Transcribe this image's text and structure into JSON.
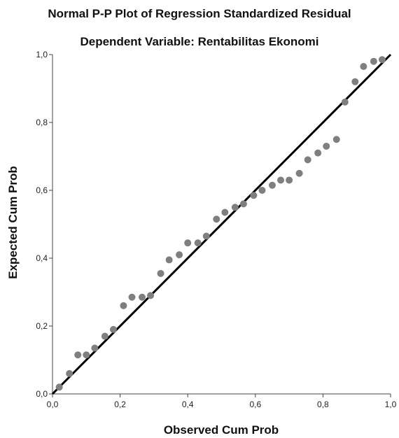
{
  "chart_data": {
    "type": "scatter",
    "title": "Normal P-P Plot of Regression Standardized Residual",
    "subtitle": "Dependent Variable: Rentabilitas Ekonomi",
    "xlabel": "Observed Cum Prob",
    "ylabel": "Expected Cum Prob",
    "xlim": [
      0,
      1
    ],
    "ylim": [
      0,
      1
    ],
    "xticks": [
      "0,0",
      "0,2",
      "0,4",
      "0,6",
      "0,8",
      "1,0"
    ],
    "yticks": [
      "0,0",
      "0,2",
      "0,4",
      "0,6",
      "0,8",
      "1,0"
    ],
    "grid": false,
    "reference_line": {
      "x": [
        0,
        1
      ],
      "y": [
        0,
        1
      ],
      "color": "#000000"
    },
    "point_color": "#7f7f7f",
    "points": [
      [
        0.02,
        0.02
      ],
      [
        0.05,
        0.06
      ],
      [
        0.075,
        0.115
      ],
      [
        0.1,
        0.115
      ],
      [
        0.125,
        0.135
      ],
      [
        0.155,
        0.17
      ],
      [
        0.18,
        0.19
      ],
      [
        0.21,
        0.26
      ],
      [
        0.235,
        0.285
      ],
      [
        0.265,
        0.285
      ],
      [
        0.29,
        0.29
      ],
      [
        0.32,
        0.355
      ],
      [
        0.345,
        0.395
      ],
      [
        0.375,
        0.41
      ],
      [
        0.4,
        0.445
      ],
      [
        0.43,
        0.445
      ],
      [
        0.455,
        0.465
      ],
      [
        0.485,
        0.515
      ],
      [
        0.51,
        0.535
      ],
      [
        0.54,
        0.55
      ],
      [
        0.565,
        0.56
      ],
      [
        0.595,
        0.585
      ],
      [
        0.62,
        0.6
      ],
      [
        0.65,
        0.615
      ],
      [
        0.675,
        0.63
      ],
      [
        0.7,
        0.63
      ],
      [
        0.73,
        0.65
      ],
      [
        0.755,
        0.69
      ],
      [
        0.785,
        0.71
      ],
      [
        0.81,
        0.73
      ],
      [
        0.84,
        0.75
      ],
      [
        0.865,
        0.86
      ],
      [
        0.895,
        0.92
      ],
      [
        0.92,
        0.965
      ],
      [
        0.95,
        0.98
      ],
      [
        0.975,
        0.985
      ]
    ]
  }
}
